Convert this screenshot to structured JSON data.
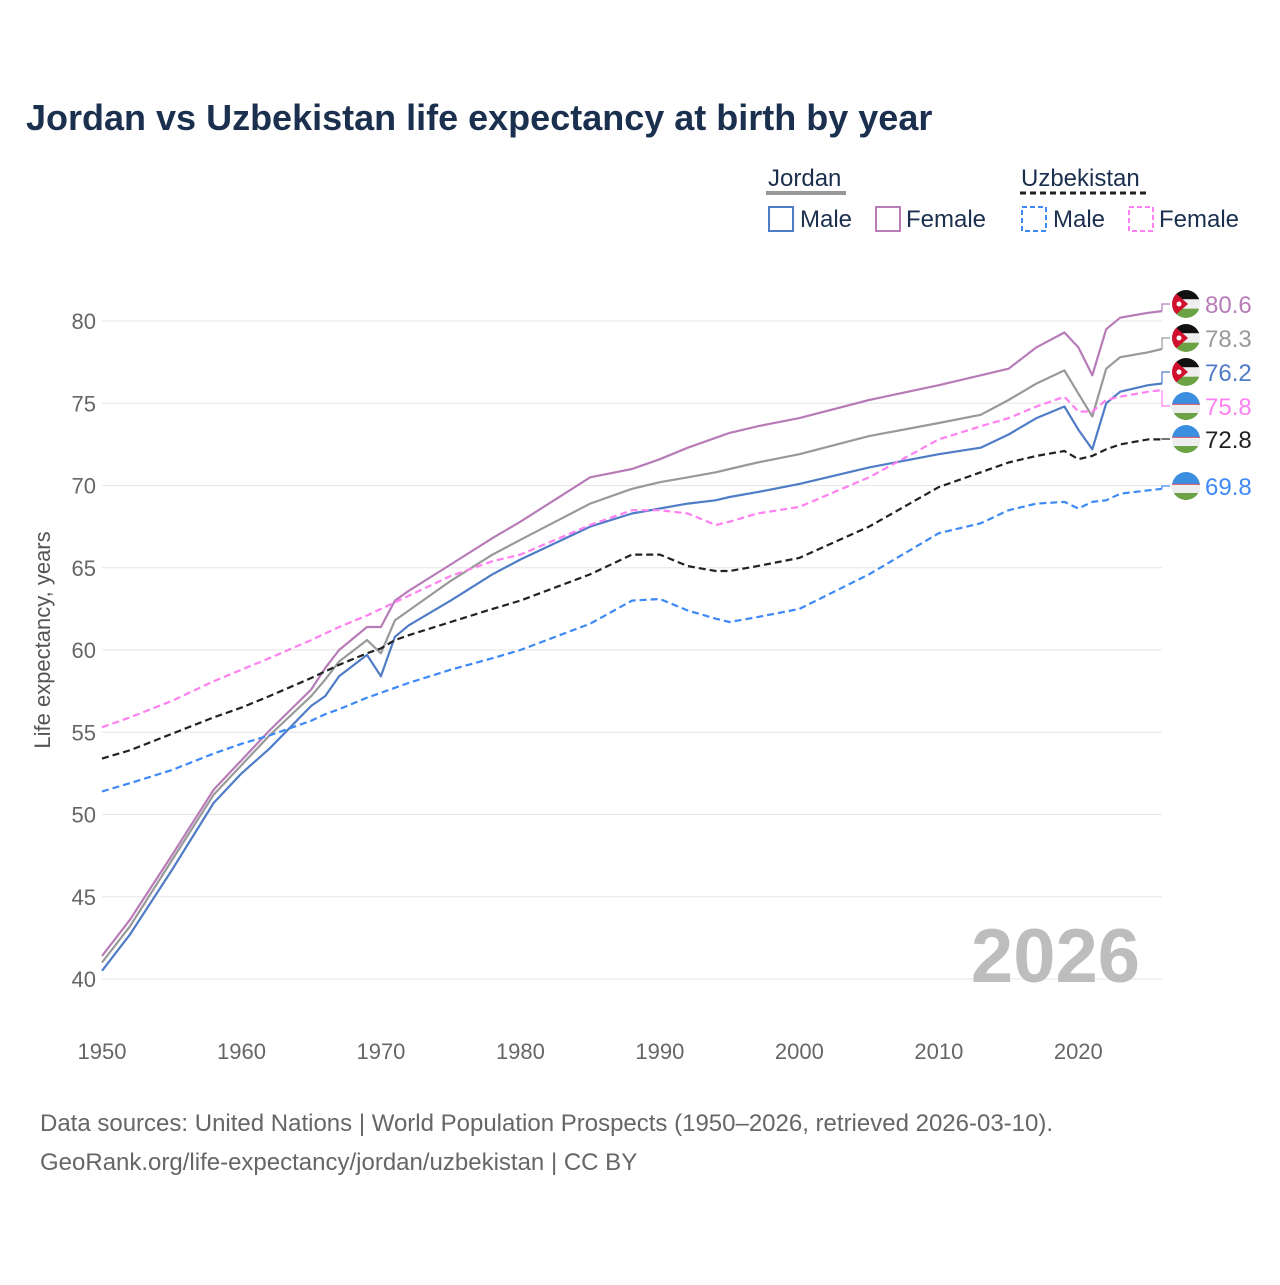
{
  "chart_data": {
    "type": "line",
    "title": "Jordan vs Uzbekistan life expectancy at birth by year",
    "xlabel": "",
    "ylabel": "Life expectancy, years",
    "xlim": [
      1950,
      2026
    ],
    "ylim": [
      38,
      82
    ],
    "x_ticks": [
      1950,
      1960,
      1970,
      1980,
      1990,
      2000,
      2010,
      2020
    ],
    "y_ticks": [
      40,
      45,
      50,
      55,
      60,
      65,
      70,
      75,
      80
    ],
    "grid": true,
    "watermark_year": "2026",
    "legend": {
      "placement": "top-right",
      "groups": [
        {
          "label": "Jordan",
          "items": [
            "Male",
            "Female"
          ]
        },
        {
          "label": "Uzbekistan",
          "items": [
            "Male",
            "Female"
          ]
        }
      ]
    },
    "x": [
      1950,
      1952,
      1955,
      1958,
      1960,
      1962,
      1965,
      1966,
      1967,
      1969,
      1970,
      1971,
      1972,
      1975,
      1978,
      1980,
      1985,
      1988,
      1990,
      1992,
      1994,
      1995,
      1997,
      2000,
      2005,
      2010,
      2013,
      2015,
      2017,
      2019,
      2020,
      2021,
      2022,
      2023,
      2025,
      2026
    ],
    "series": [
      {
        "name": "Jordan Female",
        "color": "#b77cb8",
        "dashed": false,
        "end_label": "80.6",
        "values": [
          41.4,
          43.6,
          47.5,
          51.5,
          53.3,
          55.1,
          57.6,
          58.9,
          60.0,
          61.4,
          61.4,
          63.0,
          63.6,
          65.2,
          66.8,
          67.8,
          70.5,
          71.0,
          71.6,
          72.3,
          72.9,
          73.2,
          73.6,
          74.1,
          75.2,
          76.1,
          76.7,
          77.1,
          78.4,
          79.3,
          78.4,
          76.7,
          79.5,
          80.2,
          80.5,
          80.6
        ]
      },
      {
        "name": "Jordan Total",
        "color": "#999999",
        "dashed": false,
        "end_label": "78.3",
        "values": [
          41.0,
          43.2,
          47.2,
          51.2,
          53.0,
          54.8,
          57.2,
          58.2,
          59.3,
          60.6,
          59.8,
          61.8,
          62.4,
          64.2,
          65.8,
          66.7,
          68.9,
          69.8,
          70.2,
          70.5,
          70.8,
          71.0,
          71.4,
          71.9,
          73.0,
          73.8,
          74.3,
          75.2,
          76.2,
          77.0,
          75.6,
          74.2,
          77.1,
          77.8,
          78.1,
          78.3
        ]
      },
      {
        "name": "Jordan Male",
        "color": "#4f7cc6",
        "dashed": false,
        "end_label": "76.2",
        "values": [
          40.5,
          42.7,
          46.6,
          50.7,
          52.5,
          54.0,
          56.6,
          57.2,
          58.4,
          59.7,
          58.4,
          60.8,
          61.5,
          63.0,
          64.6,
          65.5,
          67.5,
          68.3,
          68.6,
          68.9,
          69.1,
          69.3,
          69.6,
          70.1,
          71.1,
          71.9,
          72.3,
          73.1,
          74.1,
          74.8,
          73.4,
          72.2,
          75.0,
          75.7,
          76.1,
          76.2
        ]
      },
      {
        "name": "Uzbekistan Female",
        "color": "#ff80f0",
        "dashed": true,
        "end_label": "75.8",
        "values": [
          55.3,
          55.9,
          56.9,
          58.1,
          58.8,
          59.5,
          60.6,
          61.0,
          61.4,
          62.1,
          62.5,
          62.9,
          63.3,
          64.5,
          65.4,
          65.8,
          67.6,
          68.5,
          68.5,
          68.3,
          67.6,
          67.8,
          68.3,
          68.7,
          70.5,
          72.8,
          73.6,
          74.1,
          74.8,
          75.4,
          74.5,
          74.5,
          75.2,
          75.4,
          75.7,
          75.8
        ]
      },
      {
        "name": "Uzbekistan Total",
        "color": "#222222",
        "dashed": true,
        "end_label": "72.8",
        "values": [
          53.4,
          53.9,
          54.9,
          55.9,
          56.5,
          57.2,
          58.3,
          58.7,
          59.1,
          59.8,
          60.1,
          60.6,
          60.9,
          61.7,
          62.5,
          63.0,
          64.6,
          65.8,
          65.8,
          65.1,
          64.8,
          64.8,
          65.1,
          65.6,
          67.5,
          69.9,
          70.8,
          71.4,
          71.8,
          72.1,
          71.6,
          71.8,
          72.2,
          72.5,
          72.8,
          72.8
        ]
      },
      {
        "name": "Uzbekistan Male",
        "color": "#3d8af7",
        "dashed": true,
        "end_label": "69.8",
        "values": [
          51.4,
          51.9,
          52.7,
          53.7,
          54.3,
          54.8,
          55.7,
          56.1,
          56.4,
          57.1,
          57.4,
          57.7,
          58.0,
          58.8,
          59.5,
          60.0,
          61.6,
          63.0,
          63.1,
          62.4,
          61.9,
          61.7,
          62.0,
          62.5,
          64.6,
          67.1,
          67.7,
          68.5,
          68.9,
          69.0,
          68.6,
          69.0,
          69.1,
          69.5,
          69.7,
          69.8
        ]
      }
    ],
    "source": "Data sources: United Nations | World Population Prospects (1950–2026, retrieved 2026-03-10).",
    "credit": "GeoRank.org/life-expectancy/jordan/uzbekistan | CC BY"
  }
}
